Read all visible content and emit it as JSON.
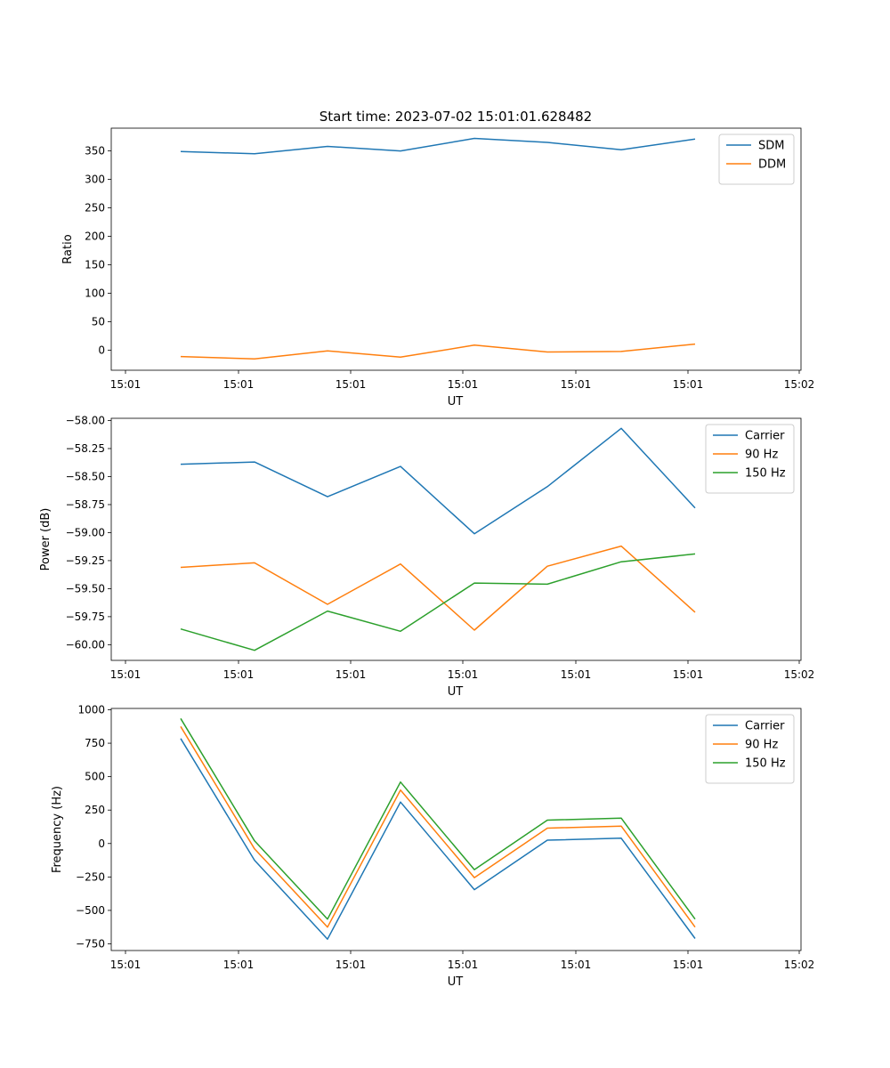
{
  "chart_data": [
    {
      "type": "line",
      "title": "Start time: 2023-07-02 15:01:01.628482",
      "xlabel": "UT",
      "ylabel": "Ratio",
      "xticks": [
        "15:01",
        "15:01",
        "15:01",
        "15:01",
        "15:01",
        "15:01",
        "15:02"
      ],
      "yticks": [
        0,
        50,
        100,
        150,
        200,
        250,
        300,
        350
      ],
      "ylim": [
        -35,
        390
      ],
      "legend_position": "top-right",
      "series": [
        {
          "name": "SDM",
          "color": "#1f77b4",
          "values": [
            349,
            345,
            358,
            350,
            372,
            365,
            352,
            371
          ]
        },
        {
          "name": "DDM",
          "color": "#ff7f0e",
          "values": [
            -11,
            -15,
            -1,
            -12,
            9,
            -3,
            -2,
            11
          ]
        }
      ]
    },
    {
      "type": "line",
      "title": "",
      "xlabel": "UT",
      "ylabel": "Power (dB)",
      "xticks": [
        "15:01",
        "15:01",
        "15:01",
        "15:01",
        "15:01",
        "15:01",
        "15:02"
      ],
      "yticks": [
        "−58.00",
        "−58.25",
        "−58.50",
        "−58.75",
        "−59.00",
        "−59.25",
        "−59.50",
        "−59.75",
        "−60.00"
      ],
      "ytick_values": [
        -58.0,
        -58.25,
        -58.5,
        -58.75,
        -59.0,
        -59.25,
        -59.5,
        -59.75,
        -60.0
      ],
      "ylim": [
        -60.14,
        -57.98
      ],
      "legend_position": "top-right",
      "series": [
        {
          "name": "Carrier",
          "color": "#1f77b4",
          "values": [
            -58.39,
            -58.37,
            -58.68,
            -58.41,
            -59.01,
            -58.59,
            -58.07,
            -58.78
          ]
        },
        {
          "name": "90 Hz",
          "color": "#ff7f0e",
          "values": [
            -59.31,
            -59.27,
            -59.64,
            -59.28,
            -59.87,
            -59.3,
            -59.12,
            -59.71
          ]
        },
        {
          "name": "150 Hz",
          "color": "#2ca02c",
          "values": [
            -59.86,
            -60.05,
            -59.7,
            -59.88,
            -59.45,
            -59.46,
            -59.26,
            -59.19
          ]
        }
      ]
    },
    {
      "type": "line",
      "title": "",
      "xlabel": "UT",
      "ylabel": "Frequency (Hz)",
      "xticks": [
        "15:01",
        "15:01",
        "15:01",
        "15:01",
        "15:01",
        "15:01",
        "15:02"
      ],
      "yticks": [
        "1000",
        "750",
        "500",
        "250",
        "0",
        "−250",
        "−500",
        "−750"
      ],
      "ytick_values": [
        1000,
        750,
        500,
        250,
        0,
        -250,
        -500,
        -750
      ],
      "ylim": [
        -800,
        1010
      ],
      "legend_position": "top-right",
      "series": [
        {
          "name": "Carrier",
          "color": "#1f77b4",
          "values": [
            785,
            -125,
            -715,
            310,
            -345,
            25,
            40,
            -710
          ]
        },
        {
          "name": "90 Hz",
          "color": "#ff7f0e",
          "values": [
            875,
            -40,
            -625,
            400,
            -255,
            115,
            130,
            -625
          ]
        },
        {
          "name": "150 Hz",
          "color": "#2ca02c",
          "values": [
            935,
            20,
            -565,
            460,
            -195,
            175,
            190,
            -565
          ]
        }
      ]
    }
  ]
}
